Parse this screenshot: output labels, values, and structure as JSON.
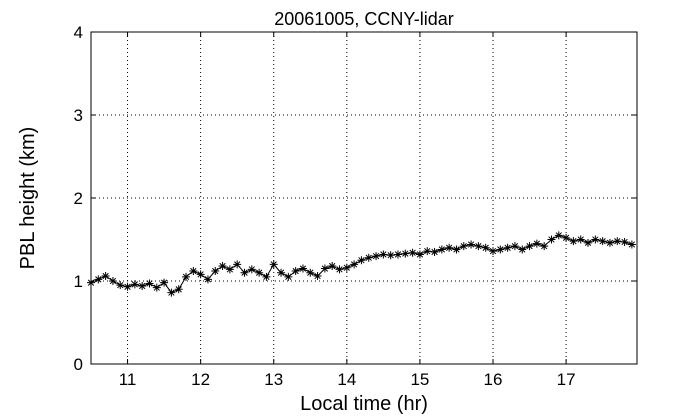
{
  "chart_data": {
    "type": "line",
    "title": "20061005, CCNY-lidar",
    "xlabel": "Local time (hr)",
    "ylabel": "PBL height (km)",
    "xlim": [
      10.5,
      17.97
    ],
    "ylim": [
      0,
      4
    ],
    "x_ticks": [
      11,
      12,
      13,
      14,
      15,
      16,
      17
    ],
    "x_tick_labels": [
      "11",
      "12",
      "13",
      "14",
      "15",
      "16",
      "17"
    ],
    "y_ticks": [
      0,
      1,
      2,
      3,
      4
    ],
    "y_tick_labels": [
      "0",
      "1",
      "2",
      "3",
      "4"
    ],
    "grid": true,
    "grid_style": "dotted",
    "marker": "asterisk",
    "line_color": "#000000",
    "series": [
      {
        "x": [
          10.5,
          10.6,
          10.7,
          10.8,
          10.9,
          11.0,
          11.1,
          11.2,
          11.3,
          11.4,
          11.5,
          11.6,
          11.7,
          11.8,
          11.9,
          12.0,
          12.1,
          12.2,
          12.3,
          12.4,
          12.5,
          12.6,
          12.7,
          12.8,
          12.9,
          13.0,
          13.1,
          13.2,
          13.3,
          13.4,
          13.5,
          13.6,
          13.7,
          13.8,
          13.9,
          14.0,
          14.1,
          14.2,
          14.3,
          14.4,
          14.5,
          14.6,
          14.7,
          14.8,
          14.9,
          15.0,
          15.1,
          15.2,
          15.3,
          15.4,
          15.5,
          15.6,
          15.7,
          15.8,
          15.9,
          16.0,
          16.1,
          16.2,
          16.3,
          16.4,
          16.5,
          16.6,
          16.7,
          16.8,
          16.9,
          17.0,
          17.1,
          17.2,
          17.3,
          17.4,
          17.5,
          17.6,
          17.7,
          17.8,
          17.9
        ],
        "y": [
          0.98,
          1.02,
          1.06,
          1.0,
          0.95,
          0.93,
          0.96,
          0.94,
          0.97,
          0.92,
          0.98,
          0.86,
          0.9,
          1.05,
          1.12,
          1.08,
          1.02,
          1.12,
          1.18,
          1.14,
          1.2,
          1.1,
          1.14,
          1.1,
          1.05,
          1.2,
          1.1,
          1.05,
          1.12,
          1.15,
          1.1,
          1.06,
          1.15,
          1.18,
          1.14,
          1.16,
          1.2,
          1.25,
          1.28,
          1.3,
          1.32,
          1.31,
          1.32,
          1.33,
          1.34,
          1.32,
          1.36,
          1.35,
          1.38,
          1.4,
          1.38,
          1.42,
          1.44,
          1.42,
          1.4,
          1.36,
          1.38,
          1.4,
          1.42,
          1.38,
          1.42,
          1.45,
          1.42,
          1.5,
          1.55,
          1.52,
          1.48,
          1.5,
          1.46,
          1.5,
          1.48,
          1.46,
          1.48,
          1.47,
          1.44
        ]
      }
    ]
  }
}
